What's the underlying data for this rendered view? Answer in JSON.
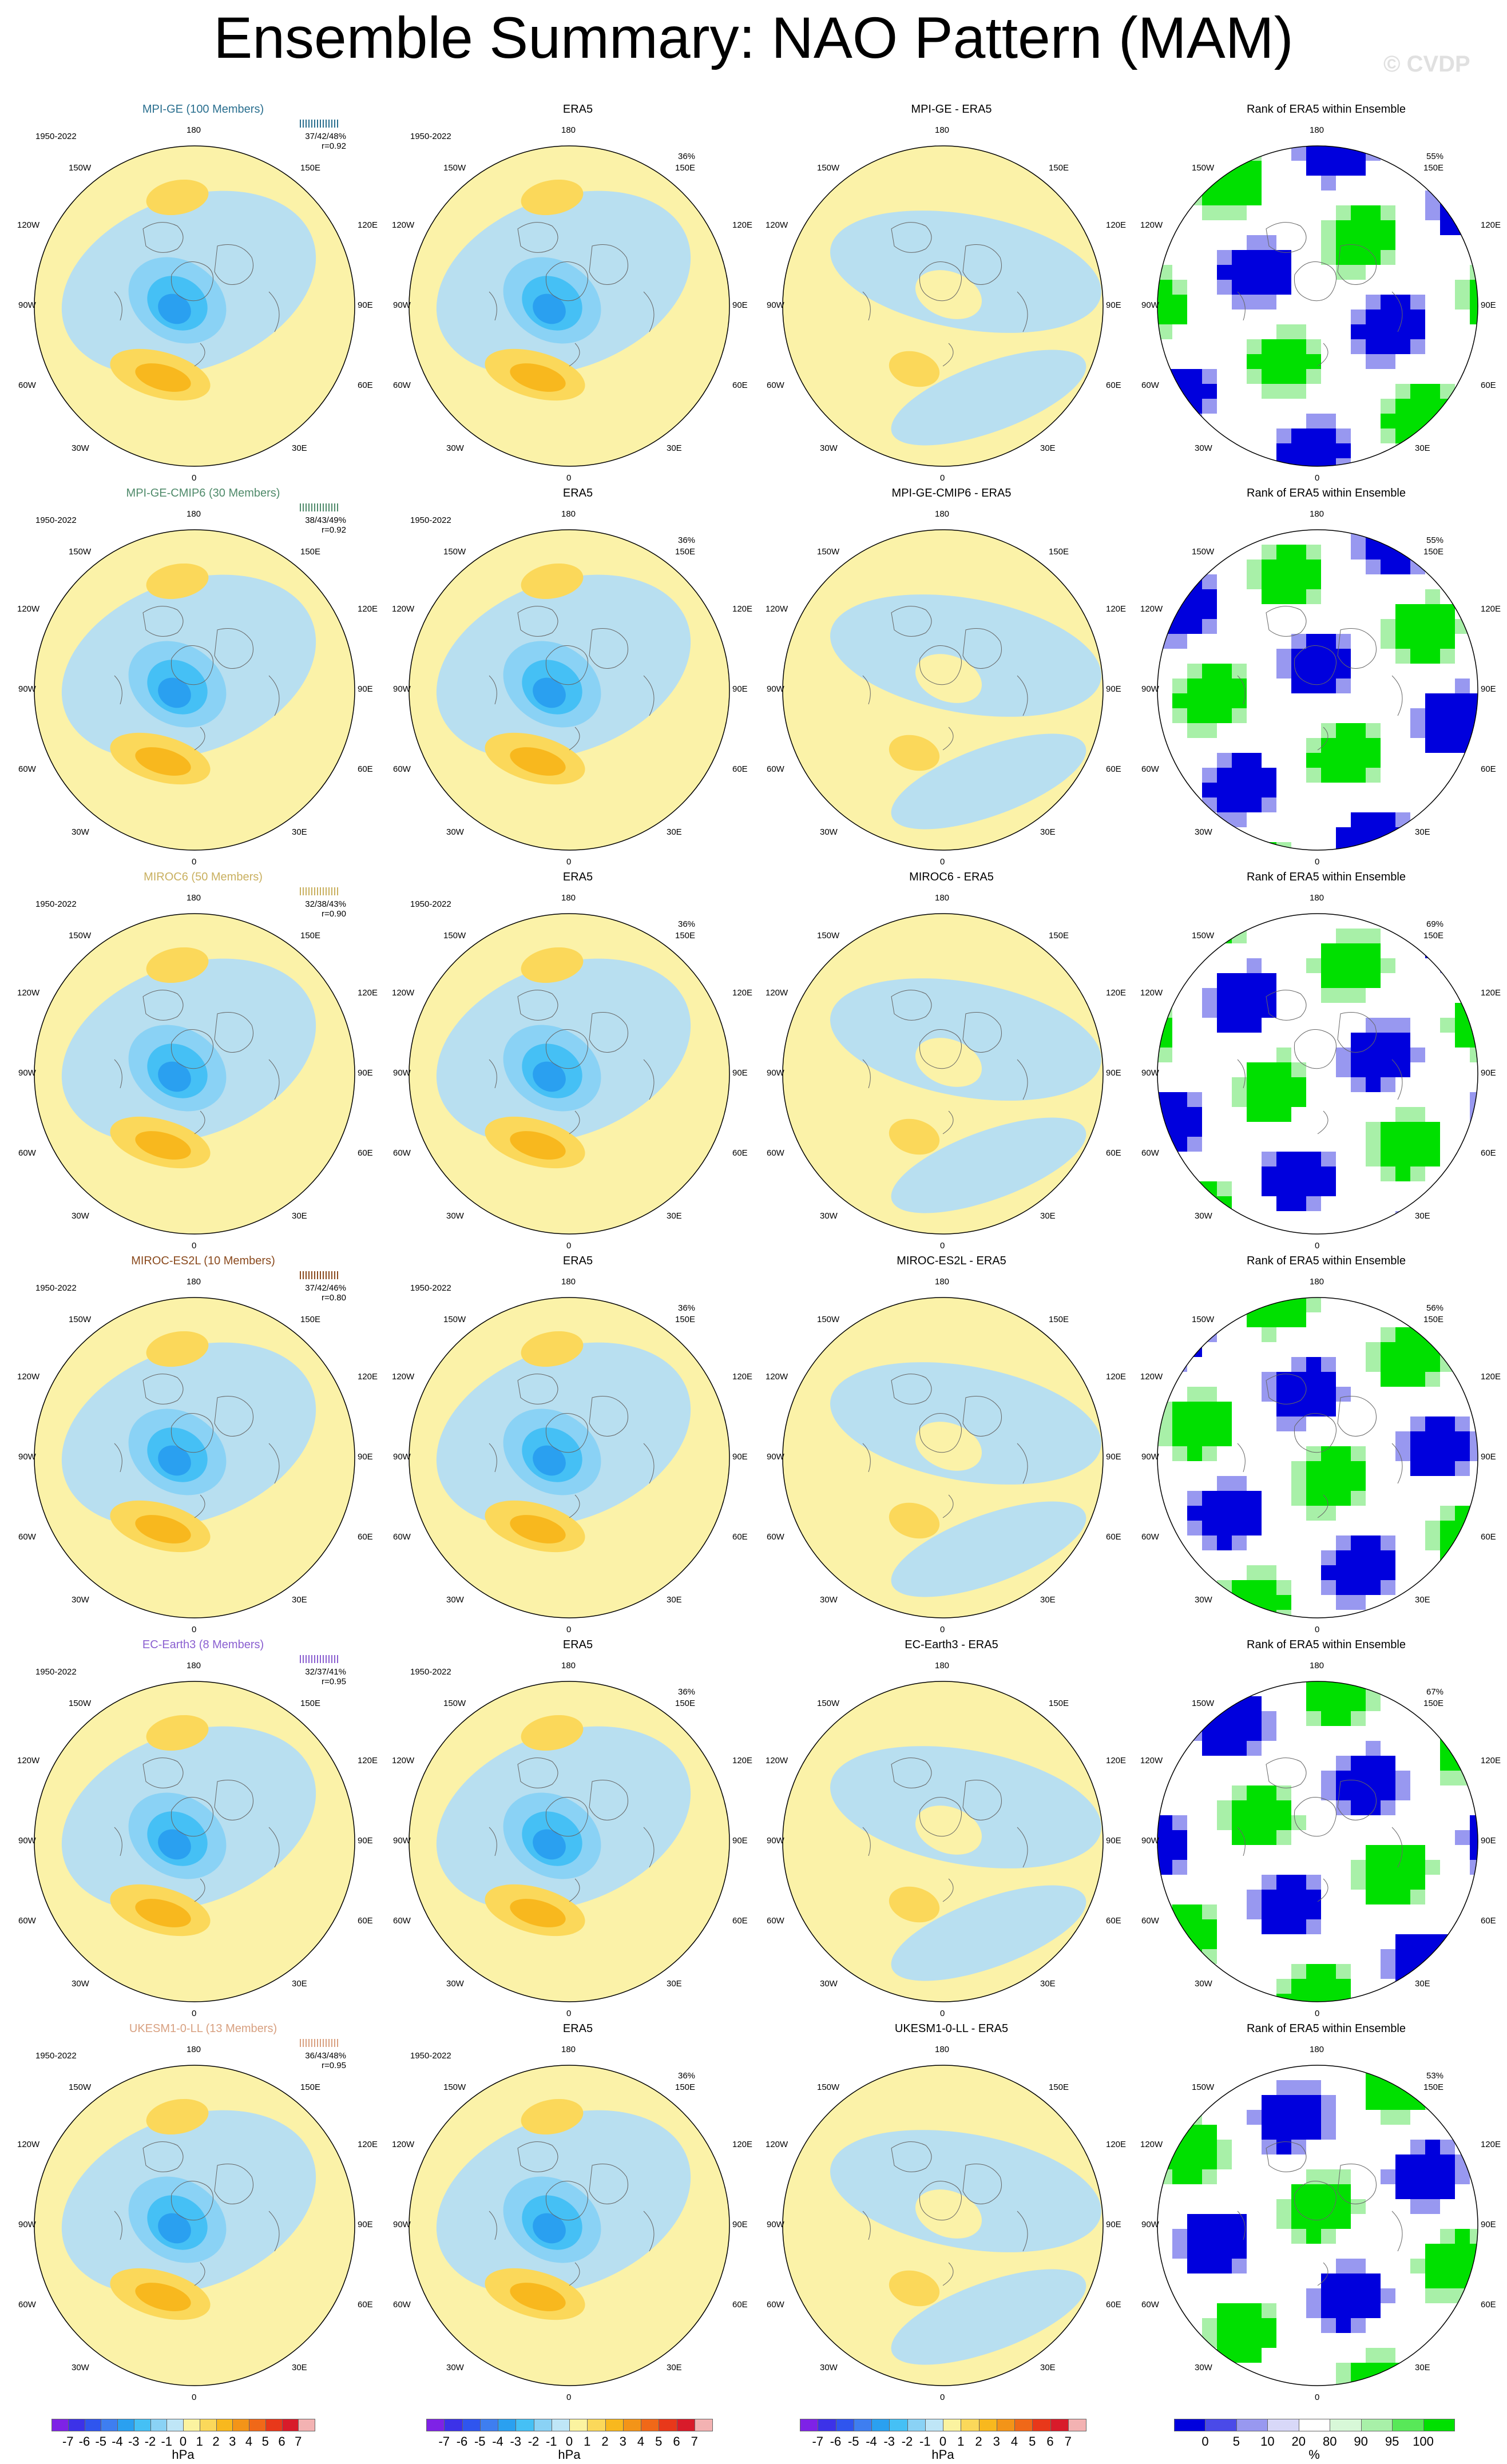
{
  "title": "Ensemble Summary: NAO Pattern (MAM)",
  "copyright": "© CVDP",
  "rank_title": "Rank of ERA5 within Ensemble",
  "obs_title": "ERA5",
  "years": "1950-2022",
  "lon_labels": {
    "top": "180",
    "bottom": "0",
    "upper_left": "150W",
    "upper_right": "150E",
    "mid_upper_left": "120W",
    "mid_upper_right": "120E",
    "mid_left": "90W",
    "mid_right": "90E",
    "mid_lower_left": "60W",
    "mid_lower_right": "60E",
    "lower_left": "30W",
    "lower_right": "30E"
  },
  "colors": {
    "title_mpi_ge": "#2a6f8f",
    "title_mpi_cmip6": "#4f8a6a",
    "title_miroc6": "#c9b060",
    "title_miroc_es2l": "#8a4a1e",
    "title_ec_earth3": "#8a5fd0",
    "title_ukesm": "#d8a080",
    "ocean_pos": "#fbf2a8",
    "ocean_neg": "#b8dff0"
  },
  "rows": [
    {
      "model_title": "MPI-GE (100 Members)",
      "stats": "37/42/48%",
      "corr": "r=0.92",
      "diff_title": "MPI-GE - ERA5",
      "obs_pct": "36%",
      "rank_pct": "55%"
    },
    {
      "model_title": "MPI-GE-CMIP6 (30 Members)",
      "stats": "38/43/49%",
      "corr": "r=0.92",
      "diff_title": "MPI-GE-CMIP6 - ERA5",
      "obs_pct": "36%",
      "rank_pct": "55%"
    },
    {
      "model_title": "MIROC6 (50 Members)",
      "stats": "32/38/43%",
      "corr": "r=0.90",
      "diff_title": "MIROC6 - ERA5",
      "obs_pct": "36%",
      "rank_pct": "69%"
    },
    {
      "model_title": "MIROC-ES2L (10 Members)",
      "stats": "37/42/46%",
      "corr": "r=0.80",
      "diff_title": "MIROC-ES2L - ERA5",
      "obs_pct": "36%",
      "rank_pct": "56%"
    },
    {
      "model_title": "EC-Earth3 (8 Members)",
      "stats": "32/37/41%",
      "corr": "r=0.95",
      "diff_title": "EC-Earth3 - ERA5",
      "obs_pct": "36%",
      "rank_pct": "67%"
    },
    {
      "model_title": "UKESM1-0-LL (13 Members)",
      "stats": "36/43/48%",
      "corr": "r=0.95",
      "diff_title": "UKESM1-0-LL - ERA5",
      "obs_pct": "36%",
      "rank_pct": "53%"
    }
  ],
  "colorbar_hpa": {
    "labels": [
      "-7",
      "-6",
      "-5",
      "-4",
      "-3",
      "-2",
      "-1",
      "0",
      "1",
      "2",
      "3",
      "4",
      "5",
      "6",
      "7"
    ],
    "colors": [
      "#7e22e6",
      "#3c32e8",
      "#2f55ee",
      "#3e7ef0",
      "#2aa0f0",
      "#45c0f5",
      "#8ad2f5",
      "#bfe6f7",
      "#fbf3a0",
      "#fbd85a",
      "#f8b81e",
      "#f39418",
      "#f06818",
      "#e8381a",
      "#d81b2a",
      "#f3b2b2"
    ],
    "unit": "hPa"
  },
  "colorbar_rank": {
    "labels": [
      "0",
      "5",
      "10",
      "20",
      "80",
      "90",
      "95",
      "100"
    ],
    "colors": [
      "#0000dd",
      "#4a4ae8",
      "#9898f0",
      "#d8d8f8",
      "#ffffff",
      "#d8f8d8",
      "#a8f0a8",
      "#58e858",
      "#00e000"
    ],
    "unit": "%"
  }
}
